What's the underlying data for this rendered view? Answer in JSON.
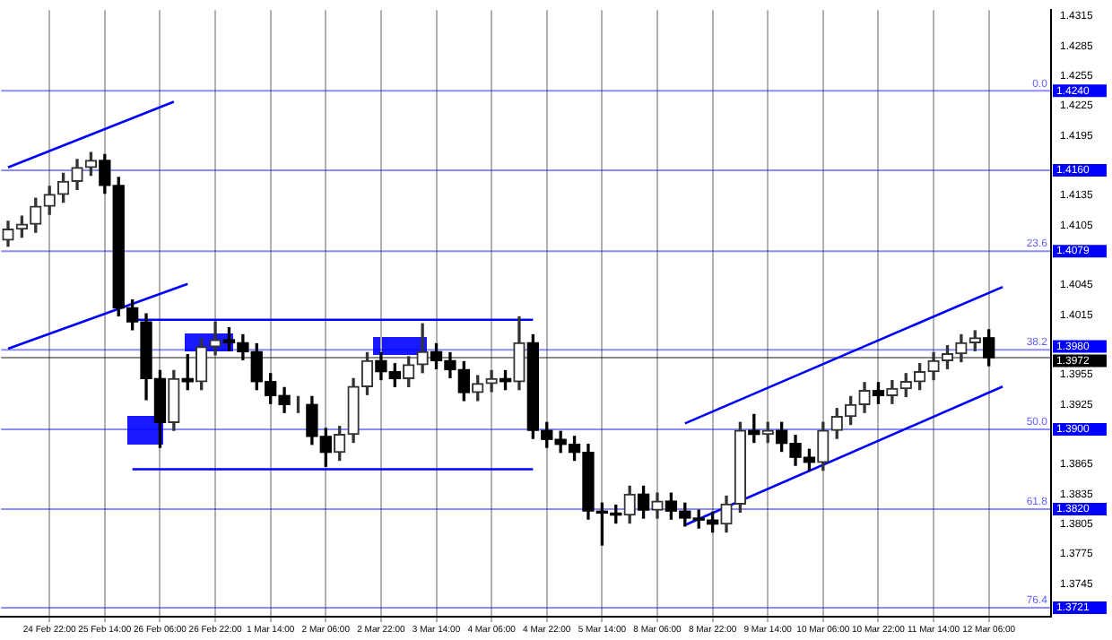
{
  "chart_data": {
    "type": "candlestick",
    "categories": [
      null,
      null,
      null,
      "24 Feb 22:00",
      null,
      null,
      null,
      "25 Feb 14:00",
      null,
      null,
      null,
      "26 Feb 06:00",
      null,
      null,
      null,
      "26 Feb 22:00",
      null,
      null,
      null,
      "1 Mar 14:00",
      null,
      null,
      null,
      "2 Mar 06:00",
      null,
      null,
      null,
      "2 Mar 22:00",
      null,
      null,
      null,
      "3 Mar 14:00",
      null,
      null,
      null,
      "4 Mar 06:00",
      null,
      null,
      null,
      "4 Mar 22:00",
      null,
      null,
      null,
      "5 Mar 14:00",
      null,
      null,
      null,
      "8 Mar 06:00",
      null,
      null,
      null,
      "8 Mar 22:00",
      null,
      null,
      null,
      "9 Mar 14:00",
      null,
      null,
      null,
      "10 Mar 06:00",
      null,
      null,
      null,
      "10 Mar 22:00",
      null,
      null,
      null,
      "11 Mar 14:00",
      null,
      null,
      null,
      "12 Mar 06:00",
      null,
      null,
      null,
      null
    ],
    "ohlc": [
      [
        1.409,
        1.4109,
        1.4084,
        1.4101
      ],
      [
        1.4101,
        1.4114,
        1.4093,
        1.4106
      ],
      [
        1.4106,
        1.4132,
        1.4098,
        1.4124
      ],
      [
        1.4124,
        1.4144,
        1.4116,
        1.4136
      ],
      [
        1.4136,
        1.4157,
        1.4128,
        1.4149
      ],
      [
        1.4149,
        1.4171,
        1.4141,
        1.4163
      ],
      [
        1.4163,
        1.4178,
        1.4155,
        1.417
      ],
      [
        1.417,
        1.4176,
        1.4137,
        1.4145
      ],
      [
        1.4145,
        1.4153,
        1.4014,
        1.4022
      ],
      [
        1.4022,
        1.403,
        1.4,
        1.4008
      ],
      [
        1.4008,
        1.4016,
        1.393,
        1.3951
      ],
      [
        1.3951,
        1.3959,
        1.3882,
        1.3907
      ],
      [
        1.3907,
        1.3959,
        1.3899,
        1.3951
      ],
      [
        1.3951,
        1.3975,
        1.394,
        1.3948
      ],
      [
        1.3948,
        1.3991,
        1.394,
        1.3983
      ],
      [
        1.3983,
        1.4008,
        1.3975,
        1.399
      ],
      [
        1.399,
        1.4002,
        1.3979,
        1.3987
      ],
      [
        1.3987,
        1.3995,
        1.397,
        1.3978
      ],
      [
        1.3978,
        1.3986,
        1.394,
        1.3948
      ],
      [
        1.3948,
        1.3956,
        1.3926,
        1.3934
      ],
      [
        1.3934,
        1.3942,
        1.3917,
        1.3925
      ],
      [
        1.3925,
        1.3933,
        1.3917,
        1.3925
      ],
      [
        1.3925,
        1.3933,
        1.3885,
        1.3893
      ],
      [
        1.3893,
        1.3901,
        1.3863,
        1.3877
      ],
      [
        1.3877,
        1.3903,
        1.3869,
        1.3895
      ],
      [
        1.3895,
        1.3951,
        1.3887,
        1.3943
      ],
      [
        1.3943,
        1.3977,
        1.3935,
        1.3969
      ],
      [
        1.3969,
        1.3977,
        1.395,
        1.3958
      ],
      [
        1.3958,
        1.3966,
        1.3943,
        1.3951
      ],
      [
        1.3951,
        1.3973,
        1.3943,
        1.3965
      ],
      [
        1.3965,
        1.4006,
        1.3957,
        1.3978
      ],
      [
        1.3978,
        1.3986,
        1.3961,
        1.3969
      ],
      [
        1.3969,
        1.3977,
        1.3952,
        1.396
      ],
      [
        1.396,
        1.3968,
        1.3929,
        1.3937
      ],
      [
        1.3937,
        1.3954,
        1.3929,
        1.3946
      ],
      [
        1.3946,
        1.3959,
        1.3938,
        1.3951
      ],
      [
        1.3951,
        1.3959,
        1.394,
        1.3948
      ],
      [
        1.3948,
        1.4013,
        1.394,
        1.3987
      ],
      [
        1.3987,
        1.3995,
        1.3891,
        1.3899
      ],
      [
        1.3899,
        1.3907,
        1.3882,
        1.389
      ],
      [
        1.389,
        1.3898,
        1.3877,
        1.3885
      ],
      [
        1.3885,
        1.3893,
        1.3869,
        1.3877
      ],
      [
        1.3877,
        1.3885,
        1.381,
        1.3818
      ],
      [
        1.3818,
        1.3826,
        1.3784,
        1.3816
      ],
      [
        1.3816,
        1.3824,
        1.3806,
        1.3814
      ],
      [
        1.3814,
        1.3843,
        1.3806,
        1.3835
      ],
      [
        1.3835,
        1.3843,
        1.3811,
        1.3819
      ],
      [
        1.3819,
        1.3836,
        1.3811,
        1.3828
      ],
      [
        1.3828,
        1.3836,
        1.381,
        1.3818
      ],
      [
        1.3818,
        1.3826,
        1.3803,
        1.3811
      ],
      [
        1.3811,
        1.3819,
        1.3801,
        1.3809
      ],
      [
        1.3809,
        1.3817,
        1.3797,
        1.3805
      ],
      [
        1.3805,
        1.3833,
        1.3797,
        1.3825
      ],
      [
        1.3825,
        1.3907,
        1.3817,
        1.3899
      ],
      [
        1.3899,
        1.3915,
        1.3887,
        1.3895
      ],
      [
        1.3895,
        1.3907,
        1.3887,
        1.3899
      ],
      [
        1.3899,
        1.3907,
        1.3878,
        1.3886
      ],
      [
        1.3886,
        1.3894,
        1.3864,
        1.3872
      ],
      [
        1.3872,
        1.388,
        1.3859,
        1.3867
      ],
      [
        1.3867,
        1.3907,
        1.3859,
        1.3899
      ],
      [
        1.3899,
        1.3921,
        1.3891,
        1.3913
      ],
      [
        1.3913,
        1.3933,
        1.3905,
        1.3925
      ],
      [
        1.3925,
        1.3947,
        1.3917,
        1.3939
      ],
      [
        1.3939,
        1.3947,
        1.3926,
        1.3934
      ],
      [
        1.3934,
        1.3949,
        1.3926,
        1.3941
      ],
      [
        1.3941,
        1.3956,
        1.3933,
        1.3948
      ],
      [
        1.3948,
        1.3966,
        1.394,
        1.3958
      ],
      [
        1.3958,
        1.3977,
        1.395,
        1.3969
      ],
      [
        1.3969,
        1.3984,
        1.3961,
        1.3976
      ],
      [
        1.3976,
        1.3995,
        1.3968,
        1.3987
      ],
      [
        1.3987,
        1.3999,
        1.3979,
        1.3992
      ],
      [
        1.3992,
        1.4,
        1.3964,
        1.3972
      ],
      null,
      null,
      null,
      null
    ],
    "series": [
      {
        "type": "line",
        "color": "#0000ff",
        "values": [
          1.4163,
          null,
          null,
          null,
          null,
          null,
          null,
          null,
          null,
          null,
          null,
          null,
          1.4229,
          null,
          null,
          null,
          null,
          null,
          null,
          null,
          null,
          null,
          null,
          null,
          null,
          null,
          null,
          null,
          null,
          null,
          null,
          null,
          null,
          null,
          null,
          null,
          null,
          null,
          null,
          null,
          null,
          null,
          null,
          null,
          null,
          null,
          null,
          null,
          null,
          null,
          null,
          null,
          null,
          null,
          null,
          null,
          null,
          null,
          null,
          null,
          null,
          null,
          null,
          null,
          null,
          null,
          null,
          null,
          null,
          null,
          null,
          null,
          null,
          null,
          null,
          null
        ]
      },
      {
        "type": "line",
        "color": "#0000ff",
        "values": [
          1.3981,
          null,
          null,
          null,
          null,
          null,
          null,
          null,
          null,
          null,
          null,
          null,
          null,
          1.4046,
          null,
          null,
          null,
          null,
          null,
          null,
          null,
          null,
          null,
          null,
          null,
          null,
          null,
          null,
          null,
          null,
          null,
          null,
          null,
          null,
          null,
          null,
          null,
          null,
          null,
          null,
          null,
          null,
          null,
          null,
          null,
          null,
          null,
          null,
          null,
          null,
          null,
          null,
          null,
          null,
          null,
          null,
          null,
          null,
          null,
          null,
          null,
          null,
          null,
          null,
          null,
          null,
          null,
          null,
          null,
          null,
          null,
          null,
          null,
          null,
          null,
          null
        ]
      },
      {
        "type": "line",
        "color": "#0000ff",
        "values": [
          null,
          null,
          null,
          null,
          null,
          null,
          null,
          null,
          null,
          1.401,
          null,
          null,
          null,
          null,
          null,
          null,
          null,
          null,
          null,
          null,
          null,
          null,
          null,
          null,
          null,
          null,
          null,
          null,
          null,
          null,
          null,
          null,
          null,
          null,
          null,
          null,
          null,
          null,
          1.401,
          null,
          null,
          null,
          null,
          null,
          null,
          null,
          null,
          null,
          null,
          null,
          null,
          null,
          null,
          null,
          null,
          null,
          null,
          null,
          null,
          null,
          null,
          null,
          null,
          null,
          null,
          null,
          null,
          null,
          null,
          null,
          null,
          null,
          null,
          null,
          null,
          null
        ]
      },
      {
        "type": "line",
        "color": "#0000ff",
        "values": [
          null,
          null,
          null,
          null,
          null,
          null,
          null,
          null,
          null,
          1.386,
          null,
          null,
          null,
          null,
          null,
          null,
          null,
          null,
          null,
          null,
          null,
          null,
          null,
          null,
          null,
          null,
          null,
          null,
          null,
          null,
          null,
          null,
          null,
          null,
          null,
          null,
          null,
          null,
          1.386,
          null,
          null,
          null,
          null,
          null,
          null,
          null,
          null,
          null,
          null,
          null,
          null,
          null,
          null,
          null,
          null,
          null,
          null,
          null,
          null,
          null,
          null,
          null,
          null,
          null,
          null,
          null,
          null,
          null,
          null,
          null,
          null,
          null,
          null,
          null,
          null,
          null
        ]
      },
      {
        "type": "line",
        "color": "#0000ff",
        "values": [
          null,
          null,
          null,
          null,
          null,
          null,
          null,
          null,
          null,
          null,
          null,
          null,
          null,
          null,
          null,
          null,
          null,
          null,
          null,
          null,
          null,
          null,
          null,
          null,
          null,
          null,
          null,
          null,
          null,
          null,
          null,
          null,
          null,
          null,
          null,
          null,
          null,
          null,
          null,
          null,
          null,
          null,
          null,
          null,
          null,
          null,
          null,
          null,
          null,
          1.3906,
          null,
          null,
          null,
          null,
          null,
          null,
          null,
          null,
          null,
          null,
          null,
          null,
          null,
          null,
          null,
          null,
          null,
          null,
          null,
          null,
          null,
          null,
          1.4043,
          null,
          null,
          null
        ]
      },
      {
        "type": "line",
        "color": "#0000ff",
        "values": [
          null,
          null,
          null,
          null,
          null,
          null,
          null,
          null,
          null,
          null,
          null,
          null,
          null,
          null,
          null,
          null,
          null,
          null,
          null,
          null,
          null,
          null,
          null,
          null,
          null,
          null,
          null,
          null,
          null,
          null,
          null,
          null,
          null,
          null,
          null,
          null,
          null,
          null,
          null,
          null,
          null,
          null,
          null,
          null,
          null,
          null,
          null,
          null,
          null,
          1.3804,
          null,
          null,
          null,
          null,
          null,
          null,
          null,
          null,
          null,
          null,
          null,
          null,
          null,
          null,
          null,
          null,
          null,
          null,
          null,
          null,
          null,
          null,
          1.3943,
          null,
          null,
          null
        ]
      }
    ],
    "marker": "none",
    "ylim": [
      1.3712,
      1.4321
    ],
    "yticks": [
      1.3745,
      1.3775,
      1.3805,
      1.3835,
      1.3865,
      1.3925,
      1.3955,
      1.4015,
      1.4045,
      1.4105,
      1.4135,
      1.4195,
      1.4225,
      1.4255,
      1.4285,
      1.4315
    ],
    "grid": "x",
    "legend": false,
    "ref_lines": [
      {
        "axis": "y",
        "value": 1.424,
        "label": "1.4240",
        "color": "#0000ff"
      },
      {
        "axis": "y",
        "value": 1.416,
        "label": "1.4160",
        "color": "#0000ff"
      },
      {
        "axis": "y",
        "value": 1.4079,
        "label": "1.4079",
        "color": "#0000ff"
      },
      {
        "axis": "y",
        "value": 1.398,
        "label": "1.3980",
        "color": "#0000ff"
      },
      {
        "axis": "y",
        "value": 1.3972,
        "label": "1.3972",
        "color": "#000000"
      },
      {
        "axis": "y",
        "value": 1.39,
        "label": "1.3900",
        "color": "#0000ff"
      },
      {
        "axis": "y",
        "value": 1.382,
        "label": "1.3820",
        "color": "#0000ff"
      },
      {
        "axis": "y",
        "value": 1.3721,
        "label": "1.3721",
        "color": "#0000ff"
      }
    ],
    "annotations": [
      {
        "text": "0.0",
        "y": 1.424
      },
      {
        "text": "23.6",
        "y": 1.4079
      },
      {
        "text": "38.2",
        "y": 1.398
      },
      {
        "text": "50.0",
        "y": 1.39
      },
      {
        "text": "61.8",
        "y": 1.382
      },
      {
        "text": "76.4",
        "y": 1.3721
      }
    ]
  }
}
